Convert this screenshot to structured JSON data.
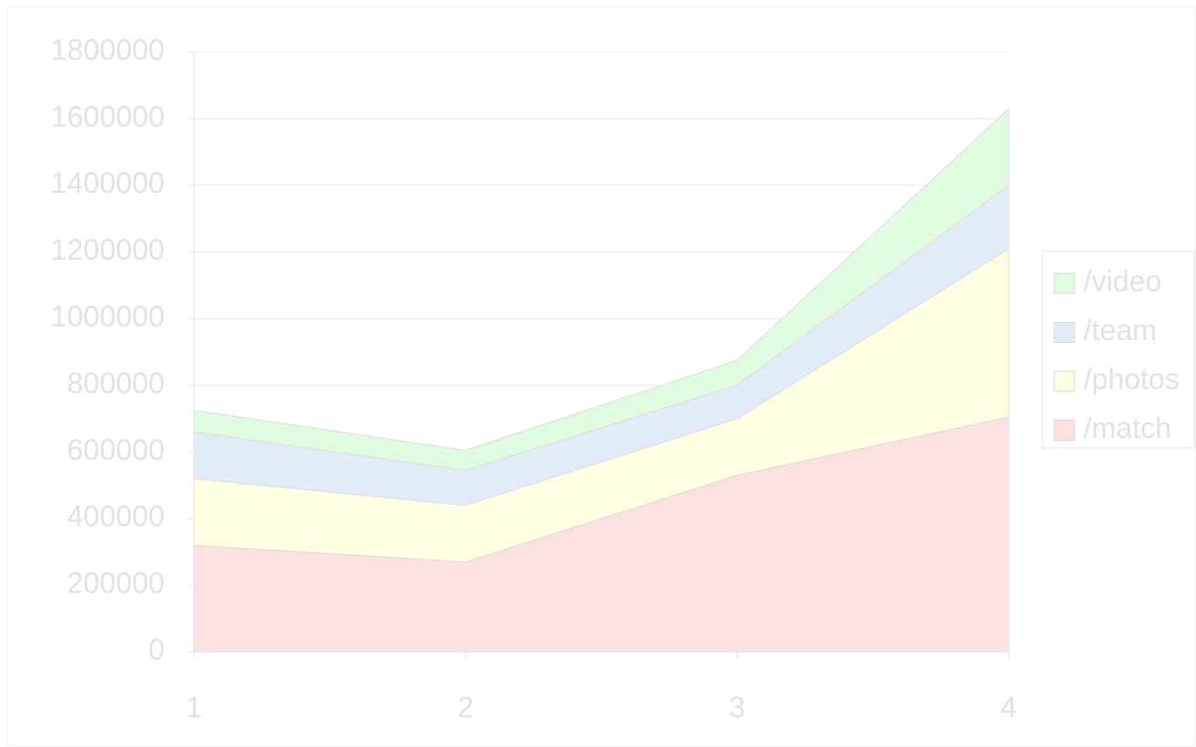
{
  "chart_data": {
    "type": "stacked_area",
    "categories": [
      "1",
      "2",
      "3",
      "4"
    ],
    "series": [
      {
        "name": "/match",
        "color": "#fde0e0",
        "values": [
          320000,
          270000,
          530000,
          705000
        ]
      },
      {
        "name": "/photos",
        "color": "#feffe0",
        "values": [
          200000,
          170000,
          170000,
          505000
        ]
      },
      {
        "name": "/team",
        "color": "#e2ecf8",
        "values": [
          140000,
          105000,
          100000,
          190000
        ]
      },
      {
        "name": "/video",
        "color": "#e0fce0",
        "values": [
          65000,
          60000,
          75000,
          230000
        ]
      }
    ],
    "ylim": [
      0,
      1800000
    ],
    "yticks": [
      0,
      200000,
      400000,
      600000,
      800000,
      1000000,
      1200000,
      1400000,
      1600000,
      1800000
    ],
    "grid": true,
    "legend": "right"
  }
}
